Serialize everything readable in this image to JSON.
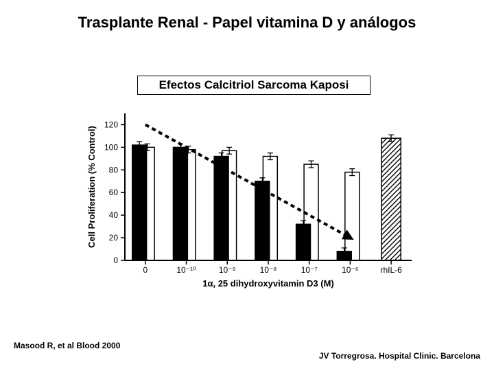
{
  "title": "Trasplante Renal - Papel vitamina D y análogos",
  "subtitle": "Efectos Calcitriol  Sarcoma Kaposi",
  "citation": "Masood R, et al Blood 2000",
  "footer": "JV Torregrosa. Hospital Clinic. Barcelona",
  "chart": {
    "type": "grouped-bar",
    "ylabel": "Cell Proliferation (% Control)",
    "ylabel_fontsize": 13,
    "xlabel": "1α, 25 dihydroxyvitamin D3 (M)",
    "xlabel_fontsize": 13,
    "ylim": [
      0,
      130
    ],
    "ytick_step": 20,
    "ytick_labels": [
      "0",
      "20",
      "40",
      "60",
      "80",
      "100",
      "120"
    ],
    "categories": [
      "0",
      "10⁻¹⁰",
      "10⁻⁹",
      "10⁻⁸",
      "10⁻⁷",
      "10⁻⁶",
      "rhIL-6"
    ],
    "series": [
      {
        "name": "black",
        "color": "#000000",
        "values": [
          102,
          100,
          92,
          70,
          32,
          8,
          null
        ]
      },
      {
        "name": "white",
        "color": "#ffffff",
        "values": [
          100,
          98,
          97,
          92,
          85,
          78,
          null
        ]
      },
      {
        "name": "hatched",
        "color": "hatch",
        "values": [
          null,
          null,
          null,
          null,
          null,
          null,
          108
        ]
      }
    ],
    "error_bar": 3,
    "bar_width": 0.35,
    "group_gap": 0.3,
    "axis_color": "#000000",
    "axis_width": 2,
    "background": "#ffffff",
    "trend_arrow": {
      "from_group": 0,
      "from_y": 120,
      "to_group": 5,
      "to_y": 20,
      "stroke": "#000000",
      "stroke_width": 4,
      "dash": "6,5",
      "arrow_size": 14
    },
    "label_fontsize": 12
  }
}
